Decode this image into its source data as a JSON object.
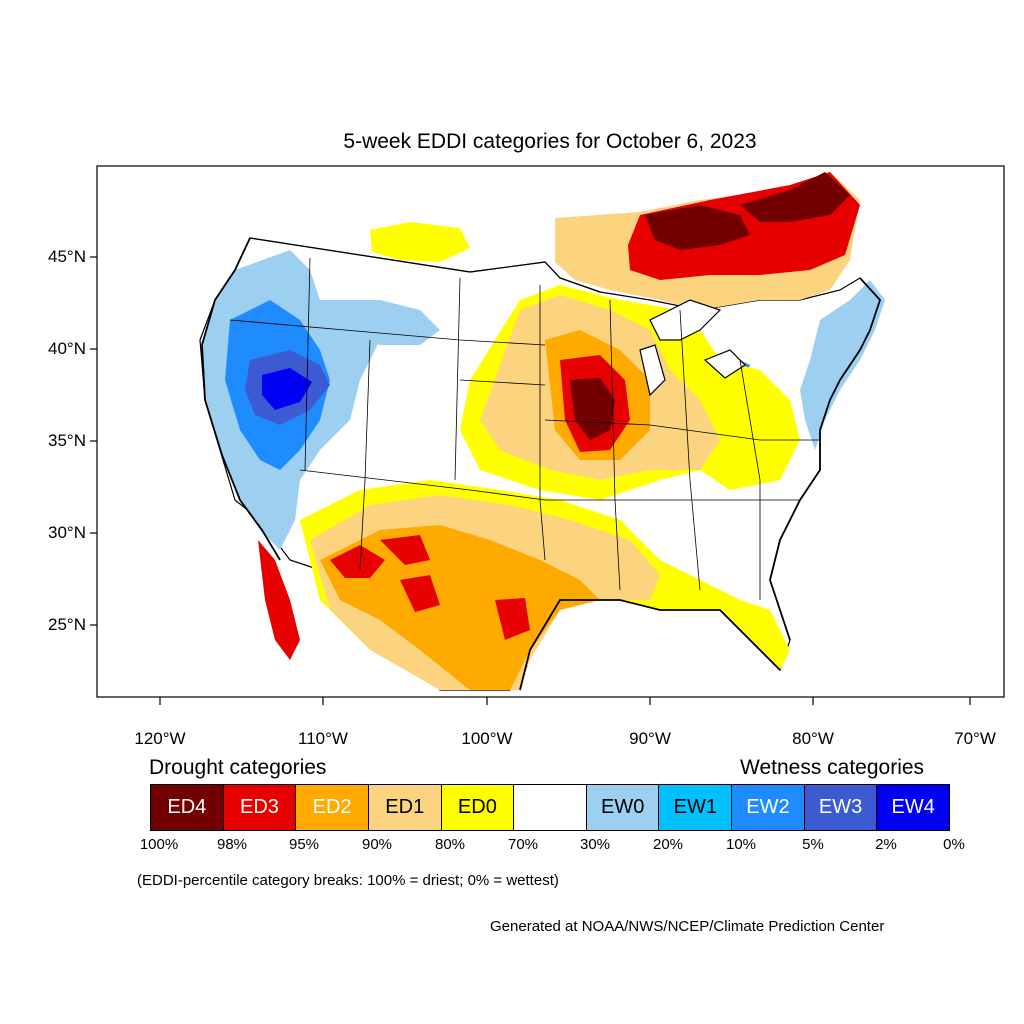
{
  "title": "5-week EDDI categories for October 6, 2023",
  "lat_labels": [
    "45°N",
    "40°N",
    "35°N",
    "30°N",
    "25°N"
  ],
  "lon_labels": [
    "120°W",
    "110°W",
    "100°W",
    "90°W",
    "80°W",
    "70°W"
  ],
  "legend": {
    "drought_title": "Drought categories",
    "wetness_title": "Wetness categories",
    "categories": [
      {
        "label": "ED4",
        "color": "#730000",
        "text_color": "#ffffff"
      },
      {
        "label": "ED3",
        "color": "#e60000",
        "text_color": "#ffffff"
      },
      {
        "label": "ED2",
        "color": "#ffaa00",
        "text_color": "#ffffff"
      },
      {
        "label": "ED1",
        "color": "#fcd37f",
        "text_color": "#000000"
      },
      {
        "label": "ED0",
        "color": "#ffff00",
        "text_color": "#000000"
      },
      {
        "label": "",
        "color": "#ffffff",
        "text_color": "#000000"
      },
      {
        "label": "EW0",
        "color": "#9dd0f0",
        "text_color": "#000000"
      },
      {
        "label": "EW1",
        "color": "#00c0ff",
        "text_color": "#000000"
      },
      {
        "label": "EW2",
        "color": "#1e8cff",
        "text_color": "#ffffff"
      },
      {
        "label": "EW3",
        "color": "#3c5ad2",
        "text_color": "#ffffff"
      },
      {
        "label": "EW4",
        "color": "#0000f5",
        "text_color": "#ffffff"
      }
    ],
    "tick_labels": [
      "100%",
      "98%",
      "95%",
      "90%",
      "80%",
      "70%",
      "30%",
      "20%",
      "10%",
      "5%",
      "2%",
      "0%"
    ]
  },
  "footnote": "(EDDI-percentile category breaks: 100% = driest; 0% = wettest)",
  "credit": "Generated at NOAA/NWS/NCEP/Climate Prediction Center"
}
